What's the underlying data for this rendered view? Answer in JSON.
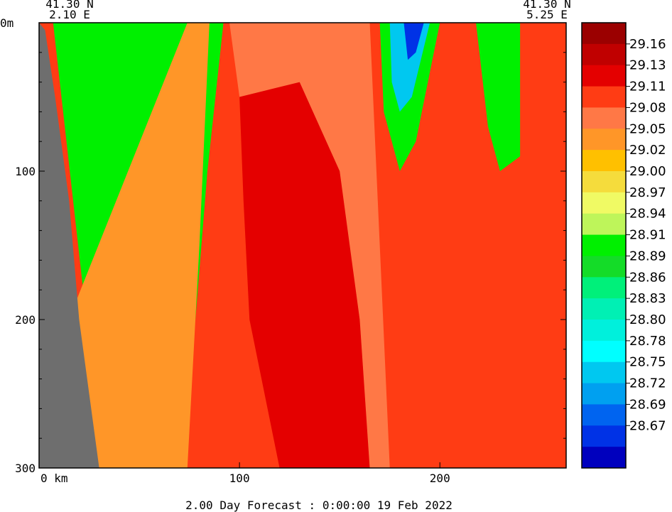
{
  "chart_data": {
    "type": "heatmap",
    "title": "2.00 Day Forecast :  0:00:00  19 Feb 2022",
    "start_point": {
      "lat": "41.30 N",
      "lon": "2.10 E"
    },
    "end_point": {
      "lat": "41.30 N",
      "lon": "5.25 E"
    },
    "x_axis": {
      "range": [
        0,
        263
      ],
      "first_tick_label": "0 km",
      "ticks": [
        {
          "value": 100,
          "label": "100"
        },
        {
          "value": 200,
          "label": "200"
        }
      ]
    },
    "y_axis": {
      "range": [
        0,
        300
      ],
      "inverted": true,
      "first_tick_label": "0m",
      "ticks": [
        {
          "value": 100,
          "label": "100"
        },
        {
          "value": 200,
          "label": "200"
        },
        {
          "value": 300,
          "label": "300"
        }
      ]
    },
    "colorbar": {
      "colors": [
        "#9b0000",
        "#c00000",
        "#e40000",
        "#ff3c14",
        "#ff7846",
        "#ff9628",
        "#ffc000",
        "#f5dc3c",
        "#f0fa64",
        "#bef55a",
        "#00f000",
        "#14dc28",
        "#00f07a",
        "#00f0b4",
        "#00f0dc",
        "#00ffff",
        "#00c8f0",
        "#00a0f0",
        "#0064f0",
        "#0032e6",
        "#0000be"
      ],
      "labels": [
        "29.16",
        "29.13",
        "29.11",
        "29.08",
        "29.05",
        "29.02",
        "29.00",
        "28.97",
        "28.94",
        "28.91",
        "28.89",
        "28.86",
        "28.83",
        "28.80",
        "28.78",
        "28.75",
        "28.72",
        "28.69",
        "28.67"
      ]
    },
    "grid": false,
    "land_color": "#6e6e6e",
    "field_levels": [
      {
        "color": "#0064f0",
        "points": [
          [
            22,
            0
          ],
          [
            80,
            0
          ],
          [
            70,
            120
          ],
          [
            60,
            200
          ],
          [
            40,
            200
          ],
          [
            25,
            100
          ]
        ]
      },
      {
        "color": "#00c8f0",
        "points": [
          [
            17,
            0
          ],
          [
            85,
            0
          ],
          [
            75,
            150
          ],
          [
            65,
            220
          ],
          [
            38,
            240
          ],
          [
            25,
            150
          ]
        ]
      },
      {
        "color": "#00f0b4",
        "points": [
          [
            10,
            0
          ],
          [
            88,
            0
          ],
          [
            78,
            170
          ],
          [
            66,
            260
          ],
          [
            36,
            250
          ],
          [
            22,
            160
          ]
        ]
      },
      {
        "color": "#00f000",
        "points": [
          [
            7,
            0
          ],
          [
            92,
            0
          ],
          [
            84,
            100
          ],
          [
            78,
            200
          ],
          [
            68,
            300
          ],
          [
            36,
            300
          ],
          [
            22,
            180
          ]
        ]
      },
      {
        "color": "#ff9628",
        "points": [
          [
            74,
            0
          ],
          [
            85,
            0
          ],
          [
            80,
            150
          ],
          [
            74,
            300
          ],
          [
            0,
            300
          ],
          [
            0,
            250
          ]
        ]
      },
      {
        "color": "#00f000",
        "points": [
          [
            170,
            0
          ],
          [
            200,
            0
          ],
          [
            188,
            80
          ],
          [
            180,
            100
          ],
          [
            172,
            60
          ]
        ]
      },
      {
        "color": "#00c8f0",
        "points": [
          [
            175,
            0
          ],
          [
            195,
            0
          ],
          [
            186,
            50
          ],
          [
            180,
            60
          ],
          [
            176,
            40
          ]
        ]
      },
      {
        "color": "#0032e6",
        "points": [
          [
            182,
            0
          ],
          [
            192,
            0
          ],
          [
            188,
            20
          ],
          [
            184,
            25
          ]
        ]
      },
      {
        "color": "#00f000",
        "points": [
          [
            218,
            0
          ],
          [
            240,
            0
          ],
          [
            240,
            90
          ],
          [
            230,
            100
          ],
          [
            224,
            70
          ]
        ]
      },
      {
        "color": "#ff7846",
        "points": [
          [
            95,
            0
          ],
          [
            165,
            0
          ],
          [
            170,
            150
          ],
          [
            175,
            300
          ],
          [
            160,
            300
          ],
          [
            150,
            200
          ],
          [
            140,
            100
          ],
          [
            120,
            60
          ],
          [
            100,
            50
          ]
        ]
      },
      {
        "color": "#e40000",
        "points": [
          [
            100,
            50
          ],
          [
            130,
            40
          ],
          [
            150,
            100
          ],
          [
            160,
            200
          ],
          [
            165,
            300
          ],
          [
            120,
            300
          ],
          [
            105,
            200
          ],
          [
            102,
            120
          ]
        ]
      }
    ],
    "land": [
      [
        0,
        0
      ],
      [
        3,
        5
      ],
      [
        8,
        50
      ],
      [
        15,
        120
      ],
      [
        20,
        200
      ],
      [
        25,
        250
      ],
      [
        30,
        300
      ],
      [
        0,
        300
      ]
    ]
  }
}
